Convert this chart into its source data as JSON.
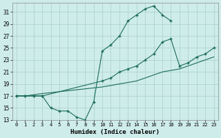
{
  "xlabel": "Humidex (Indice chaleur)",
  "bg_color": "#ceecea",
  "grid_color": "#aed4d0",
  "line_color": "#1a6b5a",
  "ylim": [
    13,
    32
  ],
  "xlim": [
    -0.5,
    23.5
  ],
  "yticks": [
    13,
    15,
    17,
    19,
    21,
    23,
    25,
    27,
    29,
    31
  ],
  "xticks": [
    0,
    1,
    2,
    3,
    4,
    5,
    6,
    7,
    8,
    9,
    10,
    11,
    12,
    13,
    14,
    15,
    16,
    17,
    18,
    19,
    20,
    21,
    22,
    23
  ],
  "line1_x": [
    0,
    1,
    2,
    3,
    4,
    5,
    6,
    7,
    8,
    9,
    10,
    11,
    12,
    13,
    14,
    15,
    16,
    17,
    18
  ],
  "line1_y": [
    17,
    17,
    17,
    17,
    15,
    14.5,
    14.5,
    13.5,
    13,
    16,
    24.5,
    25.5,
    27,
    29.5,
    30.5,
    31.5,
    32,
    30.5,
    29.5
  ],
  "line2_x": [
    0,
    1,
    2,
    3,
    10,
    11,
    12,
    13,
    14,
    15,
    16,
    17,
    18,
    19,
    20,
    21,
    22,
    23
  ],
  "line2_y": [
    17,
    17,
    17,
    17,
    19.5,
    20,
    21,
    21.5,
    22,
    23,
    24,
    26,
    26.5,
    22,
    22.5,
    23.5,
    24,
    25
  ],
  "line3_x": [
    0,
    1,
    2,
    3,
    10,
    14,
    17,
    19,
    20,
    21,
    22,
    23
  ],
  "line3_y": [
    17,
    17,
    17.2,
    17.4,
    18.5,
    19.5,
    21,
    21.5,
    22,
    22.5,
    23,
    23.5
  ]
}
